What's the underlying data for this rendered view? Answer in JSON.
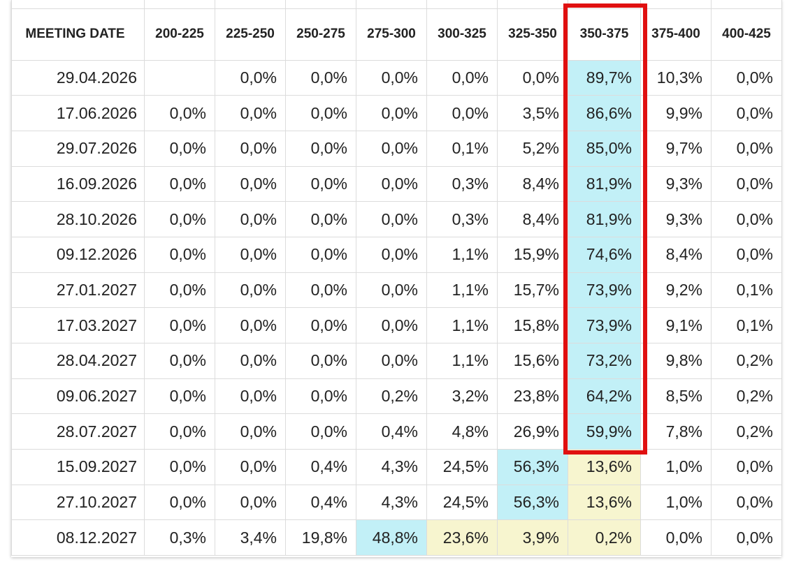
{
  "chart_data": {
    "type": "table",
    "columns": [
      "MEETING DATE",
      "200-225",
      "225-250",
      "250-275",
      "275-300",
      "300-325",
      "325-350",
      "350-375",
      "375-400",
      "400-425"
    ],
    "rows": [
      {
        "date": "29.04.2026",
        "values": [
          "",
          "0,0%",
          "0,0%",
          "0,0%",
          "0,0%",
          "0,0%",
          "89,7%",
          "10,3%",
          "0,0%"
        ],
        "highlight": {
          "6": "blue"
        }
      },
      {
        "date": "17.06.2026",
        "values": [
          "0,0%",
          "0,0%",
          "0,0%",
          "0,0%",
          "0,0%",
          "3,5%",
          "86,6%",
          "9,9%",
          "0,0%"
        ],
        "highlight": {
          "6": "blue"
        }
      },
      {
        "date": "29.07.2026",
        "values": [
          "0,0%",
          "0,0%",
          "0,0%",
          "0,0%",
          "0,1%",
          "5,2%",
          "85,0%",
          "9,7%",
          "0,0%"
        ],
        "highlight": {
          "6": "blue"
        }
      },
      {
        "date": "16.09.2026",
        "values": [
          "0,0%",
          "0,0%",
          "0,0%",
          "0,0%",
          "0,3%",
          "8,4%",
          "81,9%",
          "9,3%",
          "0,0%"
        ],
        "highlight": {
          "6": "blue"
        }
      },
      {
        "date": "28.10.2026",
        "values": [
          "0,0%",
          "0,0%",
          "0,0%",
          "0,0%",
          "0,3%",
          "8,4%",
          "81,9%",
          "9,3%",
          "0,0%"
        ],
        "highlight": {
          "6": "blue"
        }
      },
      {
        "date": "09.12.2026",
        "values": [
          "0,0%",
          "0,0%",
          "0,0%",
          "0,0%",
          "1,1%",
          "15,9%",
          "74,6%",
          "8,4%",
          "0,0%"
        ],
        "highlight": {
          "6": "blue"
        }
      },
      {
        "date": "27.01.2027",
        "values": [
          "0,0%",
          "0,0%",
          "0,0%",
          "0,0%",
          "1,1%",
          "15,7%",
          "73,9%",
          "9,2%",
          "0,1%"
        ],
        "highlight": {
          "6": "blue"
        }
      },
      {
        "date": "17.03.2027",
        "values": [
          "0,0%",
          "0,0%",
          "0,0%",
          "0,0%",
          "1,1%",
          "15,8%",
          "73,9%",
          "9,1%",
          "0,1%"
        ],
        "highlight": {
          "6": "blue"
        }
      },
      {
        "date": "28.04.2027",
        "values": [
          "0,0%",
          "0,0%",
          "0,0%",
          "0,0%",
          "1,1%",
          "15,6%",
          "73,2%",
          "9,8%",
          "0,2%"
        ],
        "highlight": {
          "6": "blue"
        }
      },
      {
        "date": "09.06.2027",
        "values": [
          "0,0%",
          "0,0%",
          "0,0%",
          "0,2%",
          "3,2%",
          "23,8%",
          "64,2%",
          "8,5%",
          "0,2%"
        ],
        "highlight": {
          "6": "blue"
        }
      },
      {
        "date": "28.07.2027",
        "values": [
          "0,0%",
          "0,0%",
          "0,0%",
          "0,4%",
          "4,8%",
          "26,9%",
          "59,9%",
          "7,8%",
          "0,2%"
        ],
        "highlight": {
          "6": "blue"
        }
      },
      {
        "date": "15.09.2027",
        "values": [
          "0,0%",
          "0,0%",
          "0,4%",
          "4,3%",
          "24,5%",
          "56,3%",
          "13,6%",
          "1,0%",
          "0,0%"
        ],
        "highlight": {
          "5": "blue",
          "6": "yellow"
        }
      },
      {
        "date": "27.10.2027",
        "values": [
          "0,0%",
          "0,0%",
          "0,4%",
          "4,3%",
          "24,5%",
          "56,3%",
          "13,6%",
          "1,0%",
          "0,0%"
        ],
        "highlight": {
          "5": "blue",
          "6": "yellow"
        }
      },
      {
        "date": "08.12.2027",
        "values": [
          "0,3%",
          "3,4%",
          "19,8%",
          "48,8%",
          "23,6%",
          "3,9%",
          "0,2%",
          "0,0%",
          "0,0%"
        ],
        "highlight": {
          "3": "blue",
          "4": "yellow",
          "5": "yellow",
          "6": "yellow"
        }
      }
    ],
    "highlight_colors": {
      "blue": "#c2f0f7",
      "yellow": "#f7f5cf"
    },
    "annotation": {
      "type": "box",
      "color": "#e01010",
      "column": "350-375",
      "first_row": 0,
      "last_row": 10
    }
  }
}
